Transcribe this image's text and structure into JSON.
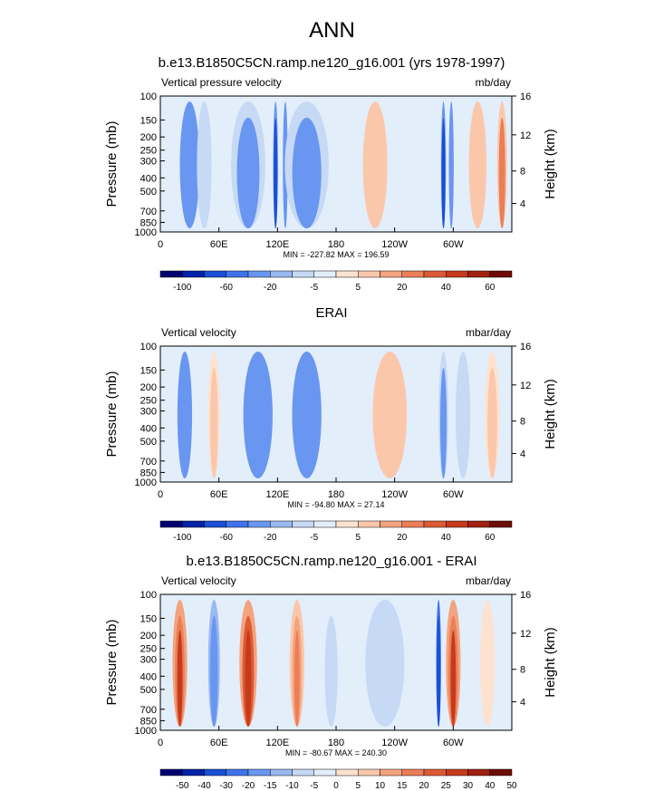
{
  "figure_title": "ANN",
  "chart_data": [
    {
      "type": "heatmap",
      "title": "b.e13.B1850C5CN.ramp.ne120_g16.001 (yrs 1978-1997)",
      "left_string": "Vertical pressure velocity",
      "right_string": "mb/day",
      "ylabel": "Pressure (mb)",
      "y2label": "Height (km)",
      "x_ticks": [
        "0",
        "60E",
        "120E",
        "180",
        "120W",
        "60W"
      ],
      "y_ticks": [
        "100",
        "150",
        "200",
        "250",
        "300",
        "400",
        "500",
        "700",
        "850",
        "1000"
      ],
      "y2_ticks": [
        "16",
        "12",
        "8",
        "4"
      ],
      "xlim": [
        0,
        360
      ],
      "ylim": [
        1000,
        100
      ],
      "stats": "MIN = -227.82   MAX = 196.59",
      "colorbar_labels": [
        "-100",
        "-60",
        "-20",
        "-5",
        "5",
        "20",
        "40",
        "60"
      ],
      "colorbar_colors": [
        "#000071",
        "#0021a8",
        "#1a4fd6",
        "#3f73eb",
        "#6996f0",
        "#9ab8f2",
        "#c6d9f5",
        "#e3eefb",
        "#fde2d0",
        "#fbc7aa",
        "#f4a37f",
        "#ea7f57",
        "#dc5a34",
        "#c63a1c",
        "#a1200f",
        "#6e0b05"
      ],
      "features": [
        {
          "lon": 30,
          "value": -60,
          "width": 20
        },
        {
          "lon": 45,
          "value": -20,
          "width": 15
        },
        {
          "lon": 90,
          "value": -30,
          "width": 35
        },
        {
          "lon": 118,
          "value": -80,
          "width": 5
        },
        {
          "lon": 128,
          "value": -60,
          "width": 5
        },
        {
          "lon": 150,
          "value": -30,
          "width": 45
        },
        {
          "lon": 220,
          "value": 12,
          "width": 25
        },
        {
          "lon": 290,
          "value": -100,
          "width": 5
        },
        {
          "lon": 298,
          "value": -60,
          "width": 5
        },
        {
          "lon": 325,
          "value": 12,
          "width": 18
        },
        {
          "lon": 350,
          "value": 30,
          "width": 10
        }
      ]
    },
    {
      "type": "heatmap",
      "title": "ERAI",
      "left_string": "Vertical velocity",
      "right_string": "mbar/day",
      "ylabel": "Pressure (mb)",
      "y2label": "Height (km)",
      "x_ticks": [
        "0",
        "60E",
        "120E",
        "180",
        "120W",
        "60W"
      ],
      "y_ticks": [
        "100",
        "150",
        "200",
        "250",
        "300",
        "400",
        "500",
        "700",
        "850",
        "1000"
      ],
      "y2_ticks": [
        "16",
        "12",
        "8",
        "4"
      ],
      "xlim": [
        0,
        360
      ],
      "ylim": [
        1000,
        100
      ],
      "stats": "MIN = -94.80   MAX = 27.14",
      "colorbar_labels": [
        "-100",
        "-60",
        "-20",
        "-5",
        "5",
        "20",
        "40",
        "60"
      ],
      "colorbar_colors": [
        "#000071",
        "#0021a8",
        "#1a4fd6",
        "#3f73eb",
        "#6996f0",
        "#9ab8f2",
        "#c6d9f5",
        "#e3eefb",
        "#fde2d0",
        "#fbc7aa",
        "#f4a37f",
        "#ea7f57",
        "#dc5a34",
        "#c63a1c",
        "#a1200f",
        "#6e0b05"
      ],
      "features": [
        {
          "lon": 25,
          "value": -40,
          "width": 15
        },
        {
          "lon": 55,
          "value": 8,
          "width": 12
        },
        {
          "lon": 100,
          "value": -40,
          "width": 30
        },
        {
          "lon": 150,
          "value": -40,
          "width": 30
        },
        {
          "lon": 235,
          "value": 12,
          "width": 35
        },
        {
          "lon": 290,
          "value": -30,
          "width": 10
        },
        {
          "lon": 310,
          "value": -20,
          "width": 15
        },
        {
          "lon": 340,
          "value": 8,
          "width": 15
        }
      ]
    },
    {
      "type": "heatmap",
      "title": "b.e13.B1850C5CN.ramp.ne120_g16.001 - ERAI",
      "left_string": "Vertical velocity",
      "right_string": "mbar/day",
      "ylabel": "Pressure (mb)",
      "y2label": "Height (km)",
      "x_ticks": [
        "0",
        "60E",
        "120E",
        "180",
        "120W",
        "60W"
      ],
      "y_ticks": [
        "100",
        "150",
        "200",
        "250",
        "300",
        "400",
        "500",
        "700",
        "850",
        "1000"
      ],
      "y2_ticks": [
        "16",
        "12",
        "8",
        "4"
      ],
      "xlim": [
        0,
        360
      ],
      "ylim": [
        1000,
        100
      ],
      "stats": "MIN = -80.67   MAX = 240.30",
      "colorbar_labels": [
        "-50",
        "-40",
        "-30",
        "-20",
        "-15",
        "-10",
        "-5",
        "0",
        "5",
        "10",
        "15",
        "20",
        "25",
        "30",
        "40",
        "50"
      ],
      "colorbar_colors": [
        "#000071",
        "#0021a8",
        "#1a4fd6",
        "#3f73eb",
        "#6996f0",
        "#9ab8f2",
        "#c6d9f5",
        "#e3eefb",
        "#fde2d0",
        "#fbc7aa",
        "#f4a37f",
        "#ea7f57",
        "#dc5a34",
        "#c63a1c",
        "#a1200f",
        "#6e0b05"
      ],
      "features": [
        {
          "lon": 20,
          "value": 30,
          "width": 15
        },
        {
          "lon": 55,
          "value": -20,
          "width": 12
        },
        {
          "lon": 90,
          "value": 35,
          "width": 18
        },
        {
          "lon": 140,
          "value": 20,
          "width": 15
        },
        {
          "lon": 175,
          "value": -8,
          "width": 20
        },
        {
          "lon": 230,
          "value": -10,
          "width": 40
        },
        {
          "lon": 285,
          "value": -40,
          "width": 5
        },
        {
          "lon": 300,
          "value": 30,
          "width": 15
        },
        {
          "lon": 335,
          "value": 8,
          "width": 15
        }
      ]
    }
  ]
}
